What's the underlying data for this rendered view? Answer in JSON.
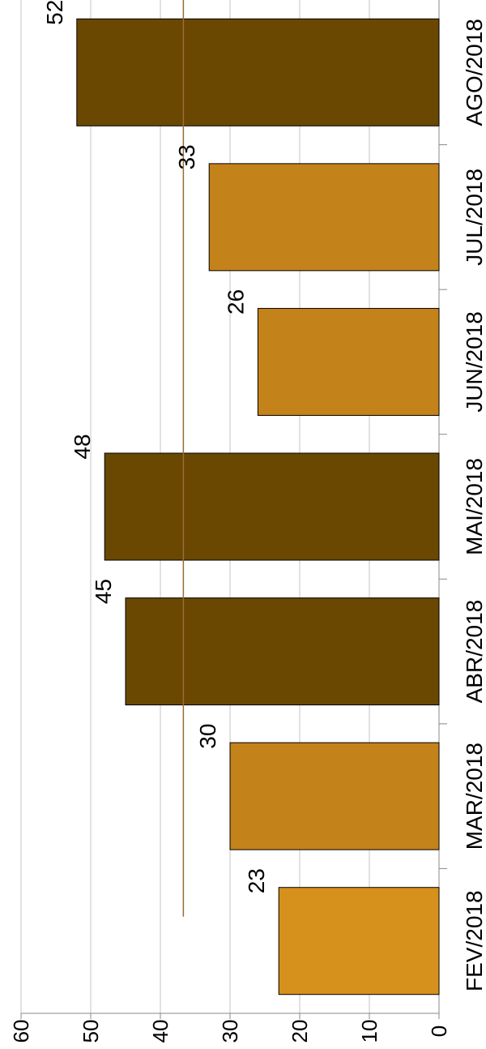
{
  "chart_data": {
    "type": "bar",
    "orientation": "vertical, rotated 90° clockwise",
    "title": "",
    "xlabel": "",
    "ylabel": "",
    "categories": [
      "FEV/2018",
      "MAR/2018",
      "ABR/2018",
      "MAI/2018",
      "JUN/2018",
      "JUL/2018",
      "AGO/2018"
    ],
    "values": [
      23,
      30,
      45,
      48,
      26,
      33,
      52
    ],
    "data_labels": [
      "23",
      "30",
      "45",
      "48",
      "26",
      "33",
      "52"
    ],
    "bar_colors": [
      "#D6901C",
      "#C4821A",
      "#6A4802",
      "#6A4802",
      "#C4821A",
      "#C4821A",
      "#6A4802"
    ],
    "reference_line": {
      "value": 36.7,
      "color": "#9A6A3A"
    },
    "ylim": [
      0,
      60
    ],
    "yticks": [
      "0",
      "10",
      "20",
      "30",
      "40",
      "50",
      "60"
    ],
    "grid": true,
    "legend": "none"
  }
}
